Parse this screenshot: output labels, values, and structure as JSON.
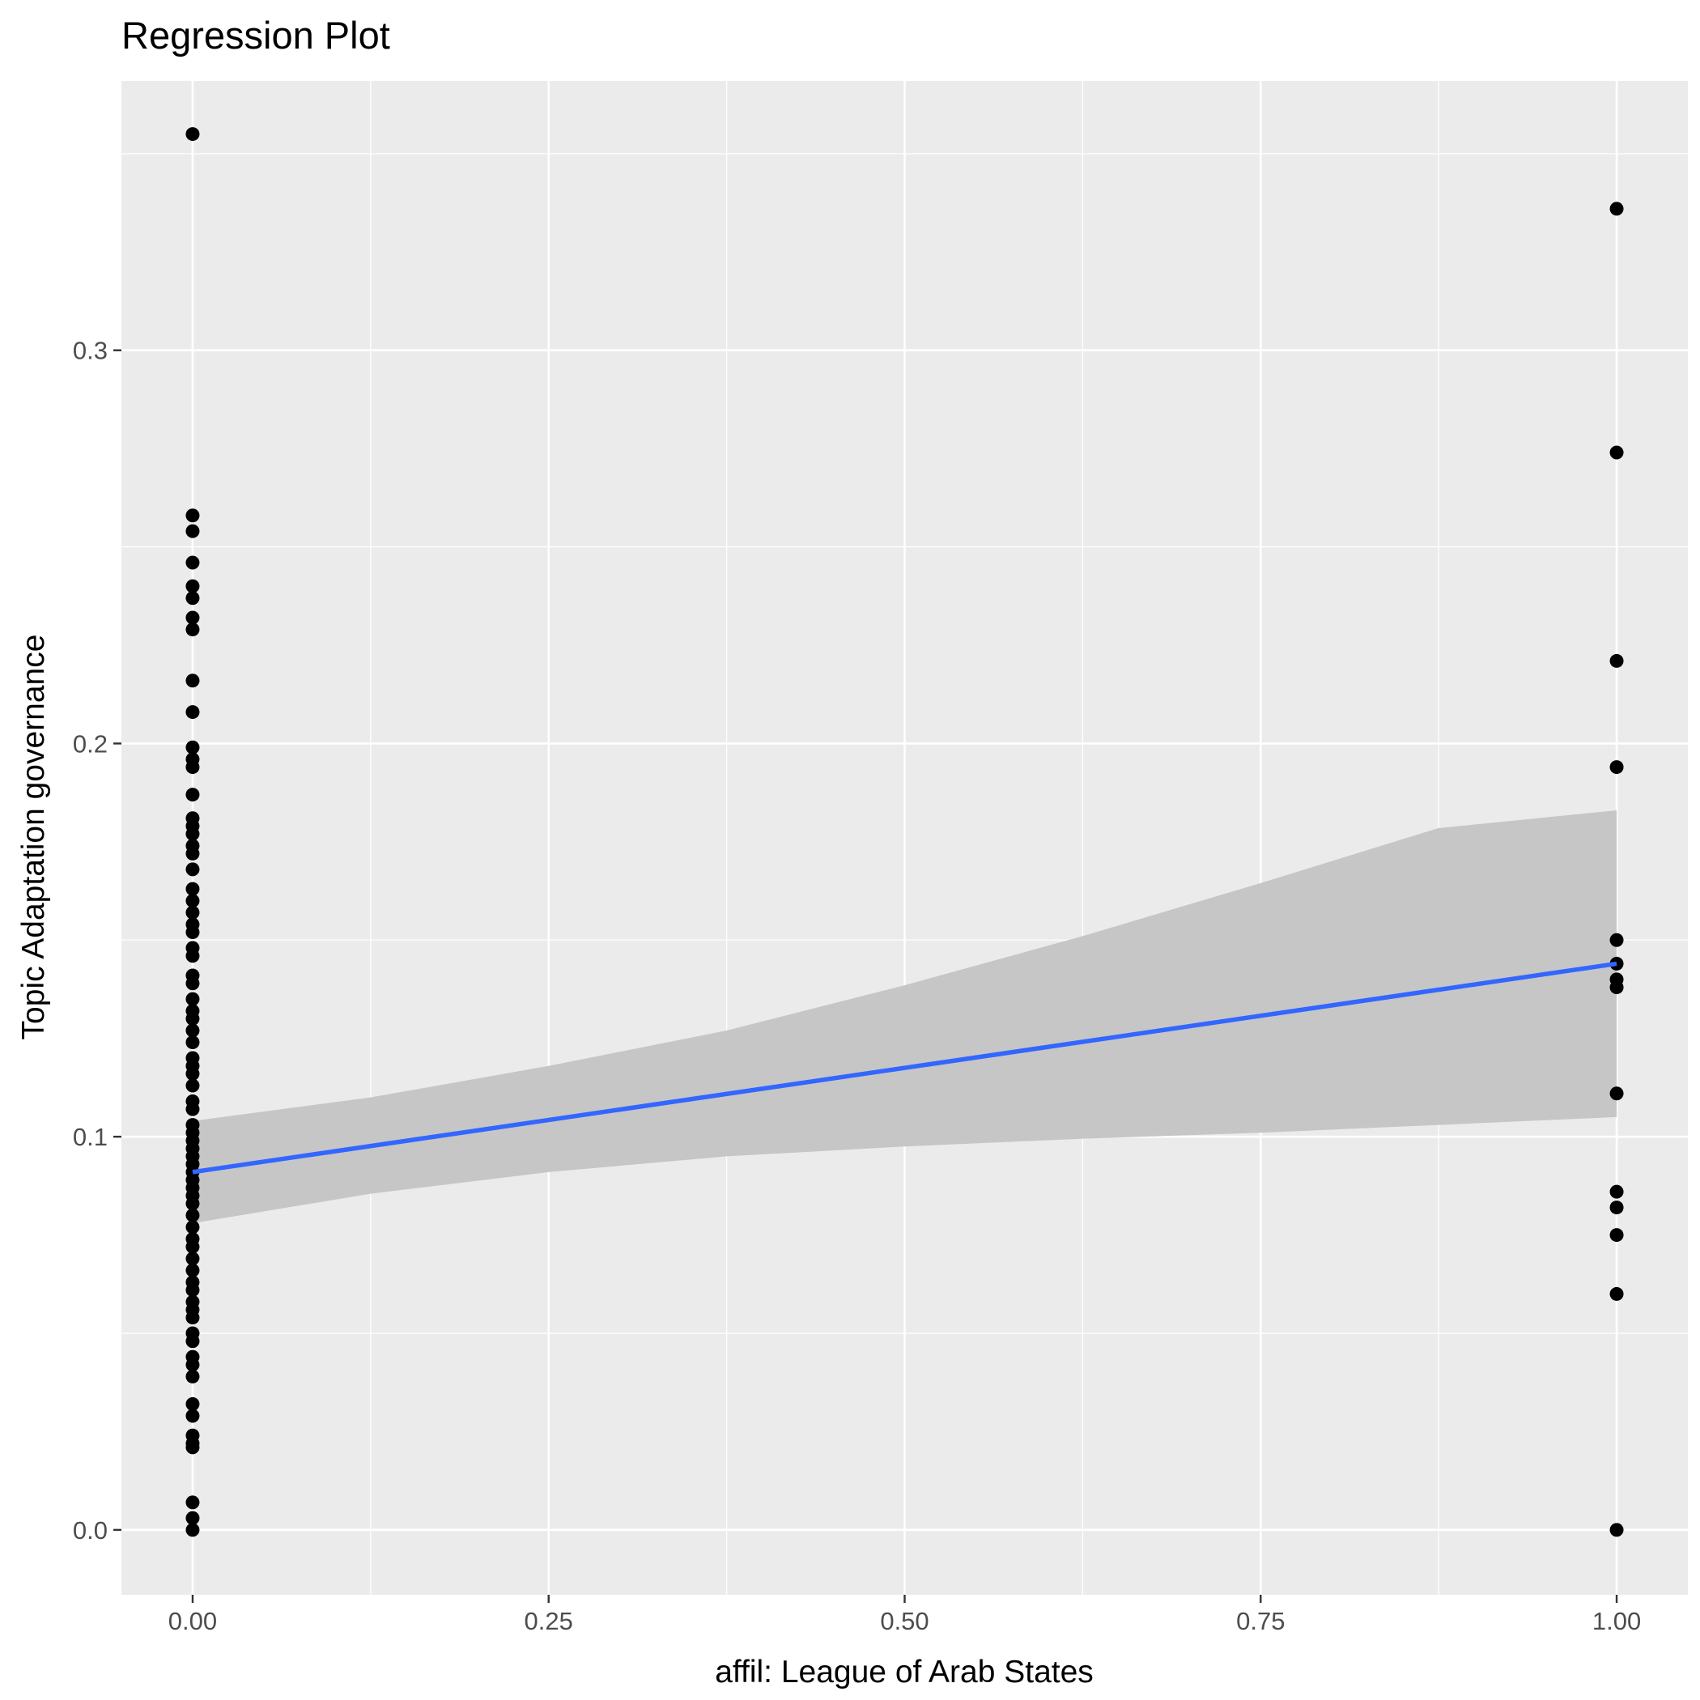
{
  "chart_data": {
    "type": "scatter",
    "title": "Regression Plot",
    "xlabel": "affil: League of Arab States",
    "ylabel": "Topic Adaptation governance",
    "xlim": [
      -0.05,
      1.05
    ],
    "ylim": [
      -0.0165,
      0.3685
    ],
    "x_ticks": [
      0.0,
      0.25,
      0.5,
      0.75,
      1.0
    ],
    "x_tick_labels": [
      "0.00",
      "0.25",
      "0.50",
      "0.75",
      "1.00"
    ],
    "y_ticks": [
      0.0,
      0.1,
      0.2,
      0.3
    ],
    "y_tick_labels": [
      "0.0",
      "0.1",
      "0.2",
      "0.3"
    ],
    "grid": true,
    "colors": {
      "panel_background": "#ebebeb",
      "grid": "#ffffff",
      "points": "#000000",
      "fit_line": "#3366ff",
      "confidence_band": "#c6c6c6"
    },
    "points": [
      {
        "x": 0,
        "y": 0.355
      },
      {
        "x": 0,
        "y": 0.258
      },
      {
        "x": 0,
        "y": 0.254
      },
      {
        "x": 0,
        "y": 0.246
      },
      {
        "x": 0,
        "y": 0.24
      },
      {
        "x": 0,
        "y": 0.237
      },
      {
        "x": 0,
        "y": 0.232
      },
      {
        "x": 0,
        "y": 0.229
      },
      {
        "x": 0,
        "y": 0.216
      },
      {
        "x": 0,
        "y": 0.208
      },
      {
        "x": 0,
        "y": 0.199
      },
      {
        "x": 0,
        "y": 0.196
      },
      {
        "x": 0,
        "y": 0.194
      },
      {
        "x": 0,
        "y": 0.187
      },
      {
        "x": 0,
        "y": 0.181
      },
      {
        "x": 0,
        "y": 0.179
      },
      {
        "x": 0,
        "y": 0.177
      },
      {
        "x": 0,
        "y": 0.174
      },
      {
        "x": 0,
        "y": 0.172
      },
      {
        "x": 0,
        "y": 0.168
      },
      {
        "x": 0,
        "y": 0.163
      },
      {
        "x": 0,
        "y": 0.16
      },
      {
        "x": 0,
        "y": 0.157
      },
      {
        "x": 0,
        "y": 0.154
      },
      {
        "x": 0,
        "y": 0.152
      },
      {
        "x": 0,
        "y": 0.148
      },
      {
        "x": 0,
        "y": 0.146
      },
      {
        "x": 0,
        "y": 0.141
      },
      {
        "x": 0,
        "y": 0.139
      },
      {
        "x": 0,
        "y": 0.135
      },
      {
        "x": 0,
        "y": 0.132
      },
      {
        "x": 0,
        "y": 0.13
      },
      {
        "x": 0,
        "y": 0.127
      },
      {
        "x": 0,
        "y": 0.124
      },
      {
        "x": 0,
        "y": 0.12
      },
      {
        "x": 0,
        "y": 0.118
      },
      {
        "x": 0,
        "y": 0.116
      },
      {
        "x": 0,
        "y": 0.113
      },
      {
        "x": 0,
        "y": 0.109
      },
      {
        "x": 0,
        "y": 0.107
      },
      {
        "x": 0,
        "y": 0.103
      },
      {
        "x": 0,
        "y": 0.101
      },
      {
        "x": 0,
        "y": 0.099
      },
      {
        "x": 0,
        "y": 0.097
      },
      {
        "x": 0,
        "y": 0.095
      },
      {
        "x": 0,
        "y": 0.093
      },
      {
        "x": 0,
        "y": 0.091
      },
      {
        "x": 0,
        "y": 0.089
      },
      {
        "x": 0,
        "y": 0.087
      },
      {
        "x": 0,
        "y": 0.085
      },
      {
        "x": 0,
        "y": 0.083
      },
      {
        "x": 0,
        "y": 0.08
      },
      {
        "x": 0,
        "y": 0.077
      },
      {
        "x": 0,
        "y": 0.074
      },
      {
        "x": 0,
        "y": 0.072
      },
      {
        "x": 0,
        "y": 0.069
      },
      {
        "x": 0,
        "y": 0.066
      },
      {
        "x": 0,
        "y": 0.063
      },
      {
        "x": 0,
        "y": 0.061
      },
      {
        "x": 0,
        "y": 0.058
      },
      {
        "x": 0,
        "y": 0.056
      },
      {
        "x": 0,
        "y": 0.054
      },
      {
        "x": 0,
        "y": 0.05
      },
      {
        "x": 0,
        "y": 0.048
      },
      {
        "x": 0,
        "y": 0.044
      },
      {
        "x": 0,
        "y": 0.042
      },
      {
        "x": 0,
        "y": 0.039
      },
      {
        "x": 0,
        "y": 0.032
      },
      {
        "x": 0,
        "y": 0.029
      },
      {
        "x": 0,
        "y": 0.024
      },
      {
        "x": 0,
        "y": 0.022
      },
      {
        "x": 0,
        "y": 0.021
      },
      {
        "x": 0,
        "y": 0.007
      },
      {
        "x": 0,
        "y": 0.003
      },
      {
        "x": 0,
        "y": 0.0
      },
      {
        "x": 1,
        "y": 0.336
      },
      {
        "x": 1,
        "y": 0.274
      },
      {
        "x": 1,
        "y": 0.221
      },
      {
        "x": 1,
        "y": 0.194
      },
      {
        "x": 1,
        "y": 0.15
      },
      {
        "x": 1,
        "y": 0.144
      },
      {
        "x": 1,
        "y": 0.14
      },
      {
        "x": 1,
        "y": 0.138
      },
      {
        "x": 1,
        "y": 0.111
      },
      {
        "x": 1,
        "y": 0.086
      },
      {
        "x": 1,
        "y": 0.082
      },
      {
        "x": 1,
        "y": 0.075
      },
      {
        "x": 1,
        "y": 0.06
      },
      {
        "x": 1,
        "y": 0.0
      }
    ],
    "fit_line": {
      "x": [
        0,
        1
      ],
      "y": [
        0.091,
        0.144
      ]
    },
    "confidence_band": {
      "x": [
        0,
        0.125,
        0.25,
        0.375,
        0.5,
        0.625,
        0.75,
        0.875,
        1.0
      ],
      "lower": [
        0.078,
        0.0855,
        0.091,
        0.095,
        0.0975,
        0.0995,
        0.101,
        0.103,
        0.105
      ],
      "upper": [
        0.104,
        0.11,
        0.118,
        0.127,
        0.1385,
        0.151,
        0.1645,
        0.1785,
        0.183
      ]
    }
  }
}
